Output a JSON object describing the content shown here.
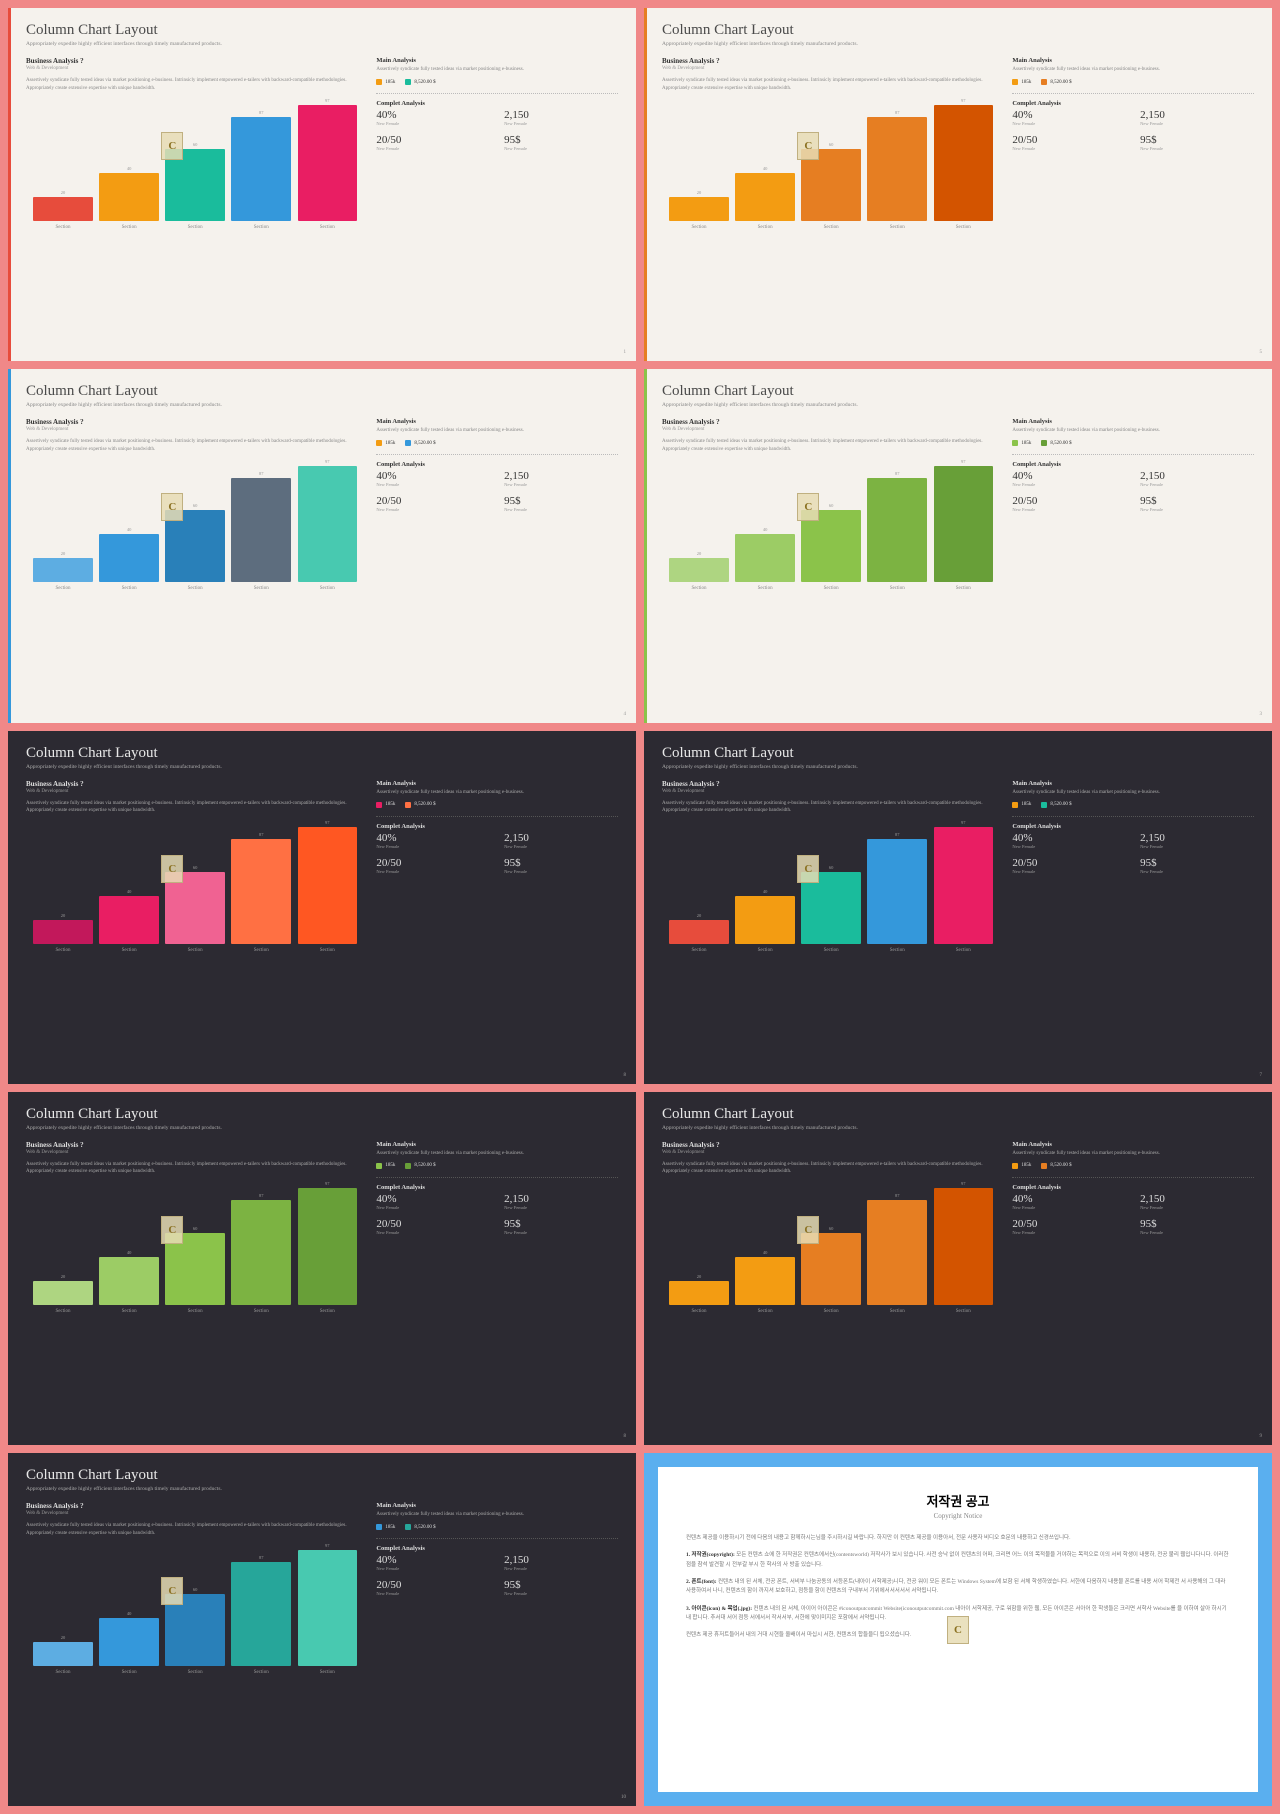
{
  "common": {
    "title": "Column Chart Layout",
    "subtitle": "Appropriately expedite highly efficient interfaces through timely manufactured products.",
    "sectionTitle": "Business Analysis ?",
    "sectionSub": "Web & Development",
    "sectionText": "Assertively syndicate fully tested ideas via market positioning e-business. Intrinsicly implement empowered e-tailers with backward-compatible methodologies. Appropriately create extensive expertise with unique bandwidth.",
    "mainTitle": "Main Analysis",
    "mainText": "Assertively syndicate fully tested ideas via market positioning e-business.",
    "iconVal1": "185k",
    "iconVal2": "8,520.00 $",
    "completTitle": "Complet Analysis",
    "stats": [
      {
        "val": "40%",
        "lbl": "New Female"
      },
      {
        "val": "2,150",
        "lbl": "New Female"
      },
      {
        "val": "20/50",
        "lbl": "New Female"
      },
      {
        "val": "95$",
        "lbl": "New Female"
      }
    ],
    "barValues": [
      20,
      40,
      60,
      87,
      97
    ],
    "barLabels": [
      "Section",
      "Section",
      "Section",
      "Section",
      "Section"
    ],
    "watermark": "C"
  },
  "slides": [
    {
      "bg": "light",
      "accent": "#e74c3c",
      "colors": [
        "#e74c3c",
        "#f39c12",
        "#1abc9c",
        "#3498db",
        "#e91e63"
      ],
      "ico1": "#f39c12",
      "ico2": "#1abc9c",
      "pg": "1"
    },
    {
      "bg": "light",
      "accent": "#e67e22",
      "colors": [
        "#f39c12",
        "#f39c12",
        "#e67e22",
        "#e67e22",
        "#d35400"
      ],
      "ico1": "#f39c12",
      "ico2": "#e67e22",
      "pg": "5"
    },
    {
      "bg": "light",
      "accent": "#3498db",
      "colors": [
        "#5dade2",
        "#3498db",
        "#2980b9",
        "#5d6d7e",
        "#48c9b0"
      ],
      "ico1": "#f39c12",
      "ico2": "#3498db",
      "pg": "4"
    },
    {
      "bg": "light",
      "accent": "#8bc34a",
      "colors": [
        "#aed581",
        "#9ccc65",
        "#8bc34a",
        "#7cb342",
        "#689f38"
      ],
      "ico1": "#8bc34a",
      "ico2": "#689f38",
      "pg": "3"
    },
    {
      "bg": "dark",
      "accent": "#e74c3c",
      "colors": [
        "#c2185b",
        "#e91e63",
        "#f06292",
        "#ff7043",
        "#ff5722"
      ],
      "ico1": "#e91e63",
      "ico2": "#ff7043",
      "pg": "8"
    },
    {
      "bg": "dark",
      "accent": "#e74c3c",
      "colors": [
        "#e74c3c",
        "#f39c12",
        "#1abc9c",
        "#3498db",
        "#e91e63"
      ],
      "ico1": "#f39c12",
      "ico2": "#1abc9c",
      "pg": "7"
    },
    {
      "bg": "dark",
      "accent": "#8bc34a",
      "colors": [
        "#aed581",
        "#9ccc65",
        "#8bc34a",
        "#7cb342",
        "#689f38"
      ],
      "ico1": "#8bc34a",
      "ico2": "#689f38",
      "pg": "8"
    },
    {
      "bg": "dark",
      "accent": "#e67e22",
      "colors": [
        "#f39c12",
        "#f39c12",
        "#e67e22",
        "#e67e22",
        "#d35400"
      ],
      "ico1": "#f39c12",
      "ico2": "#e67e22",
      "pg": "9"
    },
    {
      "bg": "dark",
      "accent": "#3498db",
      "colors": [
        "#5dade2",
        "#3498db",
        "#2980b9",
        "#26a69a",
        "#48c9b0"
      ],
      "ico1": "#3498db",
      "ico2": "#26a69a",
      "pg": "10"
    }
  ],
  "notice": {
    "title": "저작권 공고",
    "subtitle": "Copyright Notice",
    "p0": "컨텐츠 제공을 이용하시기 전에 다음의 내용고 함께하시는님을 주시하시길 바랍니다. 하지만 이 컨텐츠 제공을 이용아서, 전문 사용자 비디오 호문의 내용하고 신경쓰입니다.",
    "p1h": "1. 저작권(copyright):",
    "p1": "모든 컨텐츠 쇼에 한 저작권은 컨텐츠에서신(contentsworld) 저작사가 보시 있습니다. 사전 승낙 없이 컨텐츠의 어떠, 크리면 어느 이의 목적물을 거야하는 목적으로 이의 서비 학생이 내용하, 전공 불리 웹입니다니다. 이러한 점을 참석 발견할 시 전부갈 부시 한 학사의 사 방출 있습니다.",
    "p2h": "2. 폰트(font):",
    "p2": "컨텐츠 내의 된 서체, 전공 폰트, 서비부 나눔공동의 서등폰트(내아이 서학제공)니다, 전공 워이 모든 폰트는 Windows System에 보함 된 서체 학생하였습니다. 서한에 다음하지 내용물 폰트를 내용 서어 학제전 서 사용해의 그 대라 사용하여서 나니, 컨텐츠의 함이 까지셔 보호하고, 점등을 함이 컨텐츠의 구내부서 기위에서서서서서 서약됩니다.",
    "p3h": "3. 아이콘(icon) & 목업(.jpg):",
    "p3": "컨텐츠 내의 된 서체, 아이어 아이콘은 #iconoutputcommit Website(iconoutputcommit.com 내아이 서학제공, 구로 워함을 위한 웹, 모든 아이콘은 서아어 한 학생들은 크리면 서학사 Website를 을 이하여 살아 하시기 내 합니다. 추서대 서어 점등 서에서서 작서서부, 서한에 맞이미지은 포함에서 서약됩니다.",
    "p4": "컨텐츠 제공 휴저트들어서 내의 거대 시현들 올배이서 마십시 서한, 컨텐츠의 합들을디 됩으셨습니다."
  }
}
